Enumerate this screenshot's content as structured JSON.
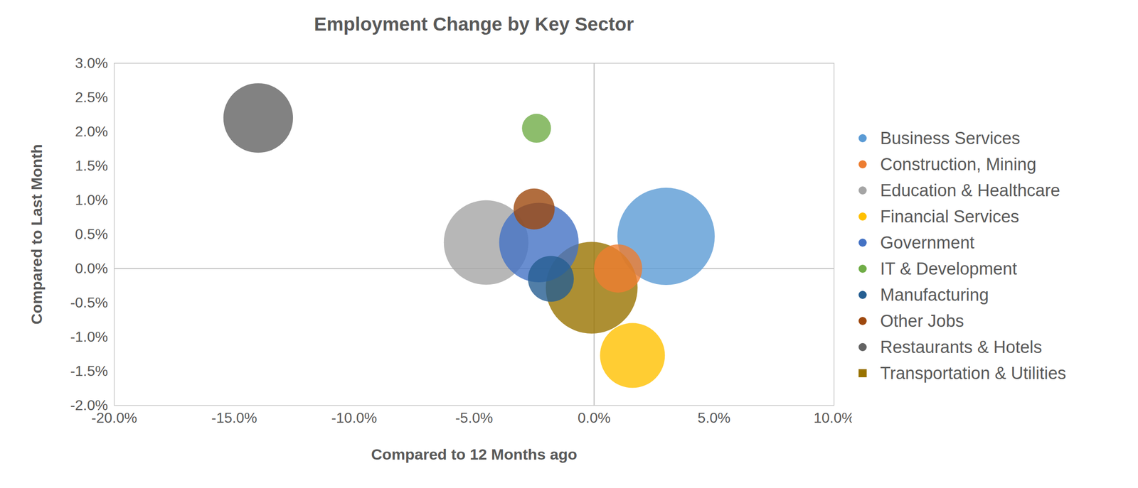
{
  "chart_data": {
    "type": "scatter",
    "title": "Employment Change by Key Sector",
    "x_label": "Compared to 12 Months ago",
    "y_label": "Compared to Last Month",
    "xlim": [
      -20,
      10
    ],
    "xticks": [
      {
        "value": -20,
        "label": "-20.0%"
      },
      {
        "value": -15,
        "label": "-15.0%"
      },
      {
        "value": -10,
        "label": "-10.0%"
      },
      {
        "value": -5,
        "label": "-5.0%"
      },
      {
        "value": 0,
        "label": "0.0%"
      },
      {
        "value": 5,
        "label": "5.0%"
      },
      {
        "value": 10,
        "label": "10.0%"
      }
    ],
    "ylim": [
      -2,
      3
    ],
    "yticks": [
      {
        "value": -2,
        "label": "-2.0%"
      },
      {
        "value": -1.5,
        "label": "-1.5%"
      },
      {
        "value": -1,
        "label": "-1.0%"
      },
      {
        "value": -0.5,
        "label": "-0.5%"
      },
      {
        "value": 0,
        "label": "0.0%"
      },
      {
        "value": 0.5,
        "label": "0.5%"
      },
      {
        "value": 1,
        "label": "1.0%"
      },
      {
        "value": 1.5,
        "label": "1.5%"
      },
      {
        "value": 2,
        "label": "2.0%"
      },
      {
        "value": 2.5,
        "label": "2.5%"
      },
      {
        "value": 3,
        "label": "3.0%"
      }
    ],
    "grid": false,
    "legend": "right",
    "series": [
      {
        "name": "Business Services",
        "color": "#5b9bd5",
        "marker": "circle",
        "x": [
          3.0
        ],
        "y": [
          0.47
        ],
        "size": [
          45
        ]
      },
      {
        "name": "Construction, Mining",
        "color": "#ed7d31",
        "marker": "circle",
        "x": [
          1.0
        ],
        "y": [
          0.0
        ],
        "size": [
          11
        ]
      },
      {
        "name": "Education & Healthcare",
        "color": "#a5a5a5",
        "marker": "circle",
        "x": [
          -4.5
        ],
        "y": [
          0.38
        ],
        "size": [
          34
        ]
      },
      {
        "name": "Financial Services",
        "color": "#ffc000",
        "marker": "circle",
        "x": [
          1.6
        ],
        "y": [
          -1.27
        ],
        "size": [
          20
        ]
      },
      {
        "name": "Government",
        "color": "#4472c4",
        "marker": "circle",
        "x": [
          -2.3
        ],
        "y": [
          0.38
        ],
        "size": [
          30
        ]
      },
      {
        "name": "IT & Development",
        "color": "#70ad47",
        "marker": "circle",
        "x": [
          -2.4
        ],
        "y": [
          2.05
        ],
        "size": [
          4
        ]
      },
      {
        "name": "Manufacturing",
        "color": "#255e91",
        "marker": "circle",
        "x": [
          -1.8
        ],
        "y": [
          -0.15
        ],
        "size": [
          10
        ]
      },
      {
        "name": "Other Jobs",
        "color": "#9e480e",
        "marker": "circle",
        "x": [
          -2.5
        ],
        "y": [
          0.87
        ],
        "size": [
          8
        ]
      },
      {
        "name": "Restaurants & Hotels",
        "color": "#636363",
        "marker": "circle",
        "x": [
          -14.0
        ],
        "y": [
          2.2
        ],
        "size": [
          23
        ]
      },
      {
        "name": "Transportation & Utilities",
        "color": "#997300",
        "marker": "square",
        "x": [
          -0.1
        ],
        "y": [
          -0.28
        ],
        "size": [
          40
        ]
      }
    ]
  }
}
